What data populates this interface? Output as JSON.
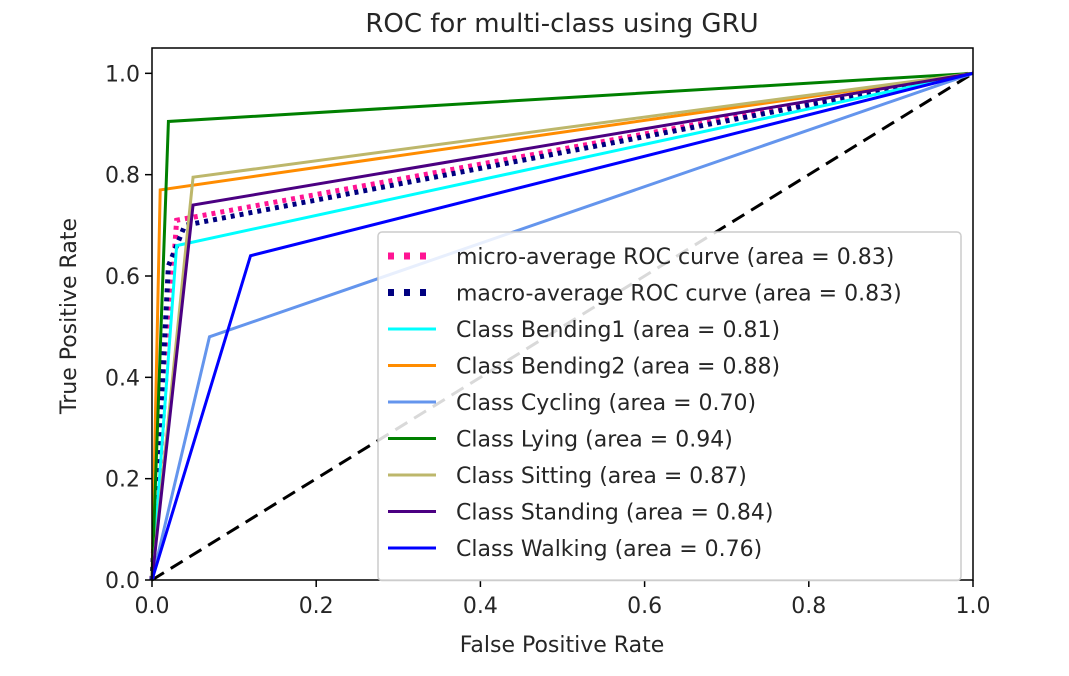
{
  "chart_data": {
    "type": "line",
    "title": "ROC for multi-class using GRU",
    "xlabel": "False Positive Rate",
    "ylabel": "True Positive Rate",
    "xlim": [
      0.0,
      1.0
    ],
    "ylim": [
      0.0,
      1.05
    ],
    "xticks": [
      "0.0",
      "0.2",
      "0.4",
      "0.6",
      "0.8",
      "1.0"
    ],
    "yticks": [
      "0.0",
      "0.2",
      "0.4",
      "0.6",
      "0.8",
      "1.0"
    ],
    "grid": false,
    "legend_position": "lower-right",
    "series": [
      {
        "name": "micro-average ROC curve (area = 0.83)",
        "color": "#ff1493",
        "style": "dotted",
        "x": [
          0,
          0.03,
          1
        ],
        "y": [
          0,
          0.71,
          1
        ]
      },
      {
        "name": "macro-average ROC curve (area = 0.83)",
        "color": "#000080",
        "style": "dotted",
        "x": [
          0,
          0.02,
          0.04,
          1
        ],
        "y": [
          0,
          0.62,
          0.7,
          1
        ]
      },
      {
        "name": "Class Bending1 (area = 0.81)",
        "color": "#00ffff",
        "style": "solid",
        "x": [
          0,
          0.03,
          1
        ],
        "y": [
          0,
          0.66,
          1
        ]
      },
      {
        "name": "Class Bending2 (area = 0.88)",
        "color": "#ff8c00",
        "style": "solid",
        "x": [
          0,
          0.01,
          1
        ],
        "y": [
          0,
          0.77,
          1
        ]
      },
      {
        "name": "Class Cycling (area = 0.70)",
        "color": "#6495ed",
        "style": "solid",
        "x": [
          0,
          0.07,
          1
        ],
        "y": [
          0,
          0.48,
          1
        ]
      },
      {
        "name": "Class Lying (area = 0.94)",
        "color": "#008000",
        "style": "solid",
        "x": [
          0,
          0.02,
          1
        ],
        "y": [
          0,
          0.905,
          1
        ]
      },
      {
        "name": "Class Sitting (area = 0.87)",
        "color": "#bdb76b",
        "style": "solid",
        "x": [
          0,
          0.05,
          1
        ],
        "y": [
          0,
          0.795,
          1
        ]
      },
      {
        "name": "Class Standing (area = 0.84)",
        "color": "#4b0082",
        "style": "solid",
        "x": [
          0,
          0.05,
          1
        ],
        "y": [
          0,
          0.74,
          1
        ]
      },
      {
        "name": "Class Walking (area = 0.76)",
        "color": "#0000ff",
        "style": "solid",
        "x": [
          0,
          0.12,
          1
        ],
        "y": [
          0,
          0.64,
          1
        ]
      }
    ],
    "reference_line": {
      "color": "#000000",
      "style": "dashed",
      "x": [
        0,
        1
      ],
      "y": [
        0,
        1
      ]
    }
  }
}
